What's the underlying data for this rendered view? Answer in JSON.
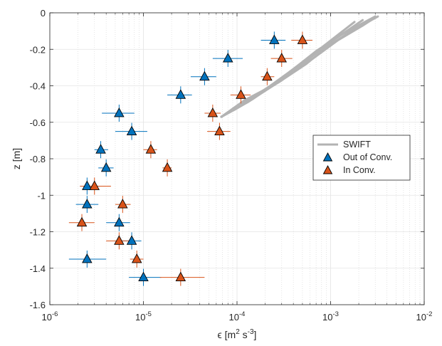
{
  "chart_data": {
    "type": "scatter",
    "x_scale": "log",
    "xlim": [
      1e-06,
      0.01
    ],
    "ylim": [
      -1.6,
      0
    ],
    "grid": true,
    "xlabel": "ε [m² s⁻³]",
    "xlabel_parts": {
      "prefix": "ϵ [m",
      "sup1": "2",
      "mid": " s",
      "sup2": "-3",
      "suffix": "]"
    },
    "ylabel": "z [m]",
    "legend_position": "right",
    "x_tick_labels": [
      {
        "base": "10",
        "exp": "-6",
        "value": 1e-06
      },
      {
        "base": "10",
        "exp": "-5",
        "value": 1e-05
      },
      {
        "base": "10",
        "exp": "-4",
        "value": 0.0001
      },
      {
        "base": "10",
        "exp": "-3",
        "value": 0.001
      },
      {
        "base": "10",
        "exp": "-2",
        "value": 0.01
      }
    ],
    "y_tick_labels": [
      {
        "label": "0",
        "value": 0
      },
      {
        "label": "-0.2",
        "value": -0.2
      },
      {
        "label": "-0.4",
        "value": -0.4
      },
      {
        "label": "-0.6",
        "value": -0.6
      },
      {
        "label": "-0.8",
        "value": -0.8
      },
      {
        "label": "-1",
        "value": -1.0
      },
      {
        "label": "-1.2",
        "value": -1.2
      },
      {
        "label": "-1.4",
        "value": -1.4
      },
      {
        "label": "-1.6",
        "value": -1.6
      }
    ],
    "series": [
      {
        "name": "SWIFT",
        "type": "line",
        "color": "#b3b3b3",
        "lines": [
          {
            "x": [
              6.8e-05,
              0.00011,
              0.0002,
              0.00035,
              0.0006,
              0.0012,
              0.0028
            ],
            "y": [
              -0.57,
              -0.5,
              -0.42,
              -0.33,
              -0.24,
              -0.13,
              -0.03
            ]
          },
          {
            "x": [
              6.8e-05,
              0.00013,
              0.00024,
              0.00042,
              0.0007,
              0.0014,
              0.003
            ],
            "y": [
              -0.57,
              -0.49,
              -0.4,
              -0.3,
              -0.21,
              -0.11,
              -0.02
            ]
          },
          {
            "x": [
              6.8e-05,
              0.0001,
              0.00017,
              0.0003,
              0.0005,
              0.001,
              0.0022
            ],
            "y": [
              -0.57,
              -0.52,
              -0.45,
              -0.37,
              -0.28,
              -0.16,
              -0.04
            ]
          },
          {
            "x": [
              6.8e-05,
              0.00012,
              0.00028,
              0.00055,
              0.00095,
              0.0018,
              0.0032
            ],
            "y": [
              -0.57,
              -0.48,
              -0.38,
              -0.28,
              -0.18,
              -0.09,
              -0.02
            ]
          },
          {
            "x": [
              6.8e-05,
              0.00014,
              0.0003,
              0.00065,
              0.0012,
              0.0022,
              0.0029
            ],
            "y": [
              -0.57,
              -0.47,
              -0.36,
              -0.25,
              -0.15,
              -0.07,
              -0.03
            ]
          },
          {
            "x": [
              6.8e-05,
              9.5e-05,
              0.00015,
              0.00025,
              0.00045,
              0.00085,
              0.0018
            ],
            "y": [
              -0.57,
              -0.53,
              -0.47,
              -0.39,
              -0.3,
              -0.18,
              -0.05
            ]
          }
        ]
      },
      {
        "name": "Out of Conv.",
        "type": "scatter",
        "color": "#0072bd",
        "points": [
          {
            "x": 0.00025,
            "y": -0.15,
            "xerr": [
              0.00018,
              0.00033
            ]
          },
          {
            "x": 8e-05,
            "y": -0.25,
            "xerr": [
              5.5e-05,
              0.000115
            ]
          },
          {
            "x": 4.5e-05,
            "y": -0.35,
            "xerr": [
              3.2e-05,
              6e-05
            ]
          },
          {
            "x": 2.5e-05,
            "y": -0.45,
            "xerr": [
              1.8e-05,
              3.3e-05
            ]
          },
          {
            "x": 5.5e-06,
            "y": -0.55,
            "xerr": [
              3.6e-06,
              8e-06
            ]
          },
          {
            "x": 7.5e-06,
            "y": -0.65,
            "xerr": [
              5e-06,
              1.1e-05
            ]
          },
          {
            "x": 3.5e-06,
            "y": -0.75,
            "xerr": [
              3e-06,
              4.2e-06
            ]
          },
          {
            "x": 4e-06,
            "y": -0.85,
            "xerr": [
              3.3e-06,
              4.8e-06
            ]
          },
          {
            "x": 2.5e-06,
            "y": -0.95,
            "xerr": [
              2.1e-06,
              3e-06
            ]
          },
          {
            "x": 2.5e-06,
            "y": -1.05,
            "xerr": [
              1.9e-06,
              3.3e-06
            ]
          },
          {
            "x": 5.5e-06,
            "y": -1.15,
            "xerr": [
              4e-06,
              7.2e-06
            ]
          },
          {
            "x": 7.5e-06,
            "y": -1.25,
            "xerr": [
              5.7e-06,
              9.5e-06
            ]
          },
          {
            "x": 2.5e-06,
            "y": -1.35,
            "xerr": [
              1.6e-06,
              4e-06
            ]
          },
          {
            "x": 1e-05,
            "y": -1.45,
            "xerr": [
              7e-06,
              1.55e-05
            ]
          }
        ]
      },
      {
        "name": "In Conv.",
        "type": "scatter",
        "color": "#d95319",
        "points": [
          {
            "x": 0.0005,
            "y": -0.15,
            "xerr": [
              0.00038,
              0.00064
            ]
          },
          {
            "x": 0.0003,
            "y": -0.25,
            "xerr": [
              0.00023,
              0.00039
            ]
          },
          {
            "x": 0.00021,
            "y": -0.35,
            "xerr": [
              0.00018,
              0.00025
            ]
          },
          {
            "x": 0.00011,
            "y": -0.45,
            "xerr": [
              8.5e-05,
              0.00014
            ]
          },
          {
            "x": 5.5e-05,
            "y": -0.55,
            "xerr": [
              4.5e-05,
              6.7e-05
            ]
          },
          {
            "x": 6.5e-05,
            "y": -0.65,
            "xerr": [
              4.8e-05,
              8.5e-05
            ]
          },
          {
            "x": 1.2e-05,
            "y": -0.75,
            "xerr": [
              1e-05,
              1.4e-05
            ]
          },
          {
            "x": 1.8e-05,
            "y": -0.85,
            "xerr": [
              1.6e-05,
              2e-05
            ]
          },
          {
            "x": 3e-06,
            "y": -0.95,
            "xerr": [
              2.1e-06,
              4.5e-06
            ]
          },
          {
            "x": 6e-06,
            "y": -1.05,
            "xerr": [
              5e-06,
              7.3e-06
            ]
          },
          {
            "x": 2.2e-06,
            "y": -1.15,
            "xerr": [
              1.6e-06,
              3e-06
            ]
          },
          {
            "x": 5.5e-06,
            "y": -1.25,
            "xerr": [
              4e-06,
              7.6e-06
            ]
          },
          {
            "x": 8.5e-06,
            "y": -1.35,
            "xerr": [
              7.2e-06,
              1e-05
            ]
          },
          {
            "x": 2.5e-05,
            "y": -1.45,
            "xerr": [
              1.5e-05,
              4.5e-05
            ]
          }
        ]
      }
    ]
  }
}
